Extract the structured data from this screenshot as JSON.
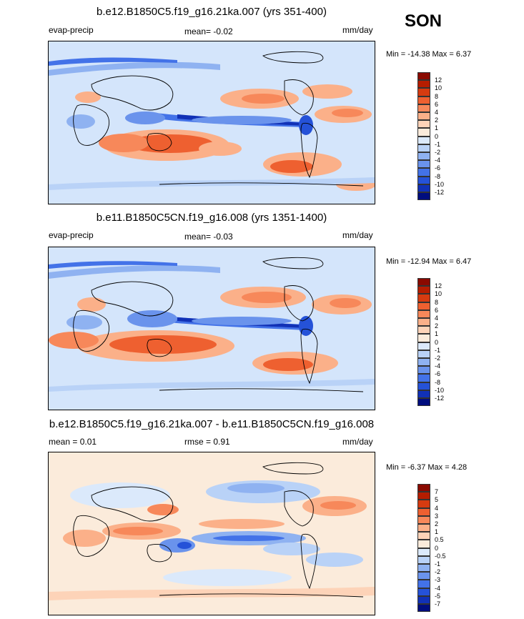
{
  "season": "SON",
  "panels": [
    {
      "title": "b.e12.B1850C5.f19_g16.21ka.007 (yrs 351-400)",
      "left_label": "evap-precip",
      "center_label": "mean=  -0.02",
      "right_label": "mm/day",
      "minmax": "Min = -14.38 Max =   6.37",
      "colorbar": {
        "labels": [
          "12",
          "10",
          "8",
          "6",
          "4",
          "2",
          "1",
          "0",
          "-1",
          "-2",
          "-4",
          "-6",
          "-8",
          "-10",
          "-12"
        ],
        "colors": [
          "#8a0a00",
          "#b51d00",
          "#d63b10",
          "#ee6030",
          "#f7885a",
          "#fbb089",
          "#fdd3b8",
          "#fbebdb",
          "#dbe9fb",
          "#b9d2f7",
          "#8fb2f1",
          "#6a93ec",
          "#4372e8",
          "#2552d8",
          "#1131b6",
          "#000d7e"
        ]
      }
    },
    {
      "title": "b.e11.B1850C5CN.f19_g16.008 (yrs 1351-1400)",
      "left_label": "evap-precip",
      "center_label": "mean=  -0.03",
      "right_label": "mm/day",
      "minmax": "Min = -12.94 Max =   6.47",
      "colorbar": {
        "labels": [
          "12",
          "10",
          "8",
          "6",
          "4",
          "2",
          "1",
          "0",
          "-1",
          "-2",
          "-4",
          "-6",
          "-8",
          "-10",
          "-12"
        ],
        "colors": [
          "#8a0a00",
          "#b51d00",
          "#d63b10",
          "#ee6030",
          "#f7885a",
          "#fbb089",
          "#fdd3b8",
          "#fbebdb",
          "#dbe9fb",
          "#b9d2f7",
          "#8fb2f1",
          "#6a93ec",
          "#4372e8",
          "#2552d8",
          "#1131b6",
          "#000d7e"
        ]
      }
    },
    {
      "title": "b.e12.B1850C5.f19_g16.21ka.007 - b.e11.B1850C5CN.f19_g16.008",
      "left_label": "mean =   0.01",
      "center_label": "rmse =   0.91",
      "right_label": "mm/day",
      "minmax": "Min =  -6.37 Max =   4.28",
      "colorbar": {
        "labels": [
          "7",
          "5",
          "4",
          "3",
          "2",
          "1",
          "0.5",
          "0",
          "-0.5",
          "-1",
          "-2",
          "-3",
          "-4",
          "-5",
          "-7"
        ],
        "colors": [
          "#8a0a00",
          "#b51d00",
          "#d63b10",
          "#ee6030",
          "#f7885a",
          "#fbb089",
          "#fdd3b8",
          "#fbebdb",
          "#dbe9fb",
          "#b9d2f7",
          "#8fb2f1",
          "#6a93ec",
          "#4372e8",
          "#2552d8",
          "#1131b6",
          "#000d7e"
        ]
      }
    }
  ],
  "colors": {
    "map_background": "#d4e5fb",
    "positive_strong": "#ee6030",
    "positive_light": "#fbb089",
    "negative_light": "#8fb2f1",
    "negative_strong": "#2552d8"
  }
}
